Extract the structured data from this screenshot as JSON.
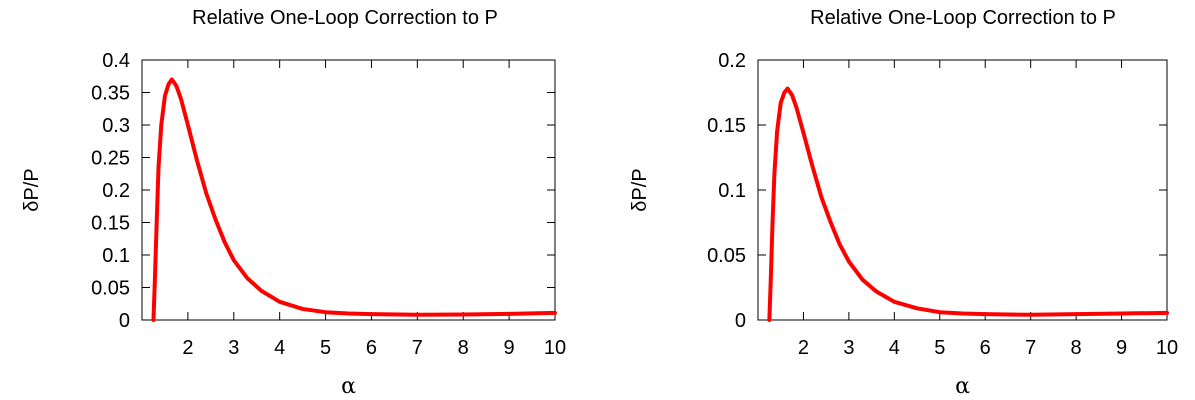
{
  "chart_data": [
    {
      "type": "line",
      "title": "Relative One-Loop Correction to P",
      "xlabel": "α",
      "ylabel": "δP/P",
      "xlim": [
        1,
        10
      ],
      "ylim": [
        0,
        0.4
      ],
      "xticks": [
        "2",
        "3",
        "4",
        "5",
        "6",
        "7",
        "8",
        "9",
        "10"
      ],
      "yticks": [
        "0",
        "0.05",
        "0.1",
        "0.15",
        "0.2",
        "0.25",
        "0.3",
        "0.35",
        "0.4"
      ],
      "grid": false,
      "line_color": "#ff0000",
      "series": [
        {
          "x": [
            1.25,
            1.28,
            1.32,
            1.36,
            1.42,
            1.5,
            1.58,
            1.65,
            1.75,
            1.85,
            2.0,
            2.2,
            2.4,
            2.6,
            2.8,
            3.0,
            3.3,
            3.6,
            4.0,
            4.5,
            5.0,
            5.5,
            6.0,
            7.0,
            8.0,
            9.0,
            10.0
          ],
          "values": [
            0.0,
            0.06,
            0.15,
            0.235,
            0.3,
            0.345,
            0.363,
            0.37,
            0.36,
            0.34,
            0.3,
            0.245,
            0.195,
            0.155,
            0.12,
            0.092,
            0.064,
            0.045,
            0.028,
            0.017,
            0.012,
            0.01,
            0.009,
            0.008,
            0.0085,
            0.0095,
            0.011
          ]
        }
      ]
    },
    {
      "type": "line",
      "title": "Relative One-Loop Correction to P",
      "xlabel": "α",
      "ylabel": "δP/P",
      "xlim": [
        1,
        10
      ],
      "ylim": [
        0,
        0.2
      ],
      "xticks": [
        "2",
        "3",
        "4",
        "5",
        "6",
        "7",
        "8",
        "9",
        "10"
      ],
      "yticks": [
        "0",
        "0.05",
        "0.1",
        "0.15",
        "0.2"
      ],
      "grid": false,
      "line_color": "#ff0000",
      "series": [
        {
          "x": [
            1.25,
            1.28,
            1.32,
            1.36,
            1.42,
            1.5,
            1.58,
            1.65,
            1.75,
            1.85,
            2.0,
            2.2,
            2.4,
            2.6,
            2.8,
            3.0,
            3.3,
            3.6,
            4.0,
            4.5,
            5.0,
            5.5,
            6.0,
            7.0,
            8.0,
            9.0,
            10.0
          ],
          "values": [
            0.0,
            0.03,
            0.075,
            0.112,
            0.145,
            0.167,
            0.175,
            0.178,
            0.173,
            0.163,
            0.144,
            0.118,
            0.094,
            0.075,
            0.058,
            0.045,
            0.031,
            0.022,
            0.014,
            0.009,
            0.006,
            0.005,
            0.0045,
            0.004,
            0.0045,
            0.005,
            0.0055
          ]
        }
      ]
    }
  ]
}
